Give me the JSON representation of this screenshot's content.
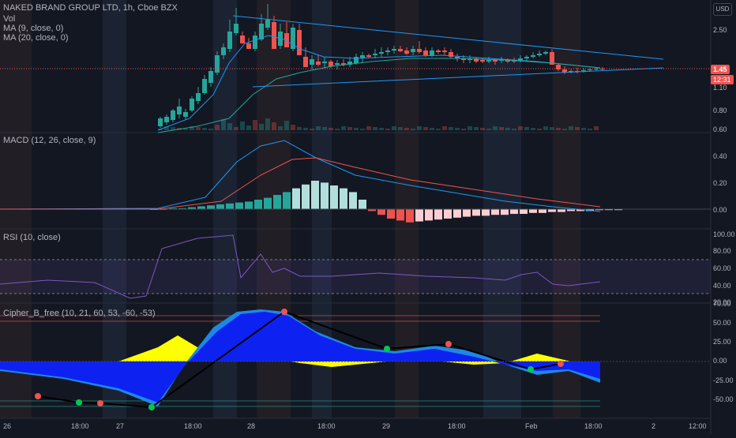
{
  "header": {
    "symbol_line": "NAKED BRAND GROUP LTD, 1h, Cboe BZX",
    "vol_label": "Vol",
    "ma9_label": "MA (9, close, 0)",
    "ma20_label": "MA (20, close, 0)",
    "currency": "USD"
  },
  "price_axis": {
    "ticks": [
      "2.50",
      "1.10",
      "0.80",
      "0.60"
    ],
    "last_price": "1.45",
    "countdown": "12:31"
  },
  "macd": {
    "title": "MACD (12, 26, close, 9)",
    "ticks": [
      "0.40",
      "0.20",
      "0.00"
    ]
  },
  "rsi": {
    "title": "RSI (10, close)",
    "ticks": [
      "100.00",
      "80.00",
      "60.00",
      "40.00",
      "20.00"
    ]
  },
  "cipher": {
    "title": "Cipher_B_free (10, 21, 60, 53, -60, -53)",
    "ticks": [
      "70.00",
      "50.00",
      "25.00",
      "0.00",
      "-25.00",
      "-50.00"
    ]
  },
  "time_axis": {
    "labels": [
      "26",
      "18:00",
      "27",
      "18:00",
      "28",
      "18:00",
      "29",
      "18:00",
      "Feb",
      "18:00",
      "2",
      "12:00"
    ]
  },
  "colors": {
    "up": "#26a69a",
    "down": "#ef5350",
    "ma9": "#2196f3",
    "ma20": "#26a69a",
    "macd_line": "#2196f3",
    "signal_line": "#ef5350",
    "rsi": "#7e57c2",
    "wave_blue": "#1e88e5",
    "wave_yellow": "#ffff00",
    "bg": "#131722"
  }
}
